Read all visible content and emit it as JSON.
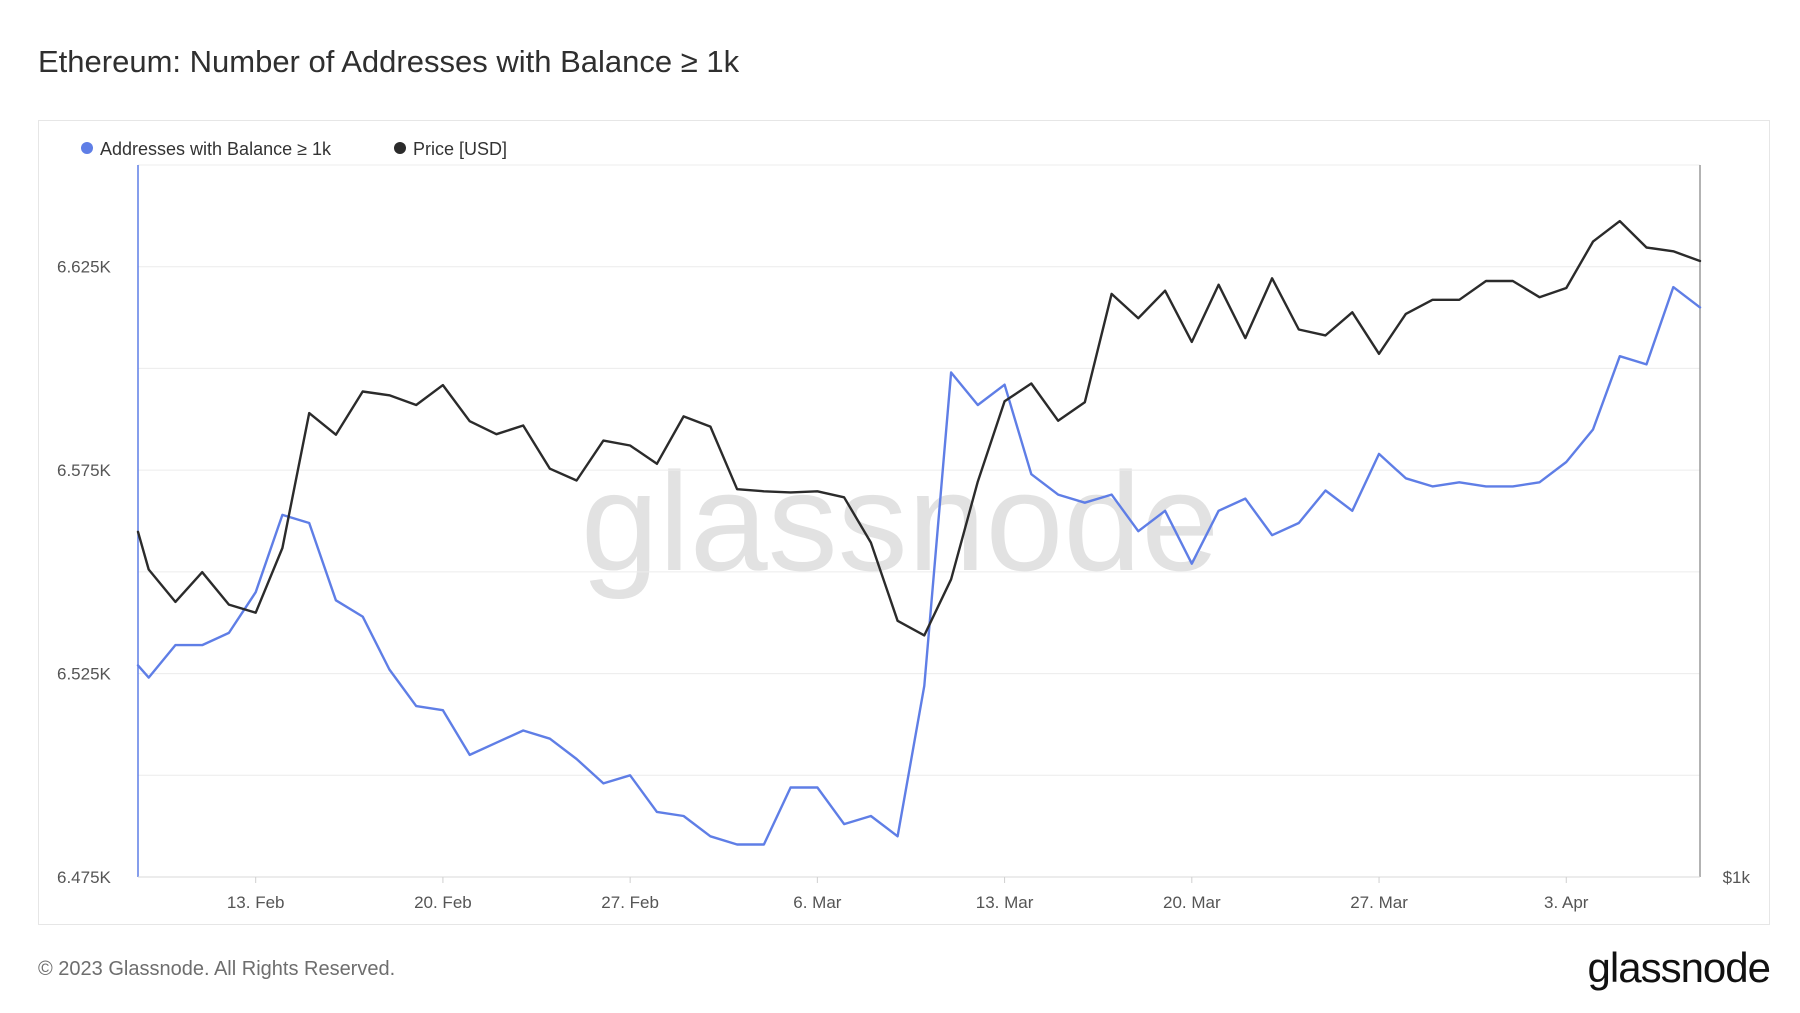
{
  "title": "Ethereum: Number of Addresses with Balance ≥ 1k",
  "footer": "© 2023 Glassnode. All Rights Reserved.",
  "brand": "glassnode",
  "watermark": "glassnode",
  "colors": {
    "addresses": "#5f7ee6",
    "price": "#2b2b2b",
    "grid": "#ececec"
  },
  "chart_data": {
    "type": "line",
    "title": "Ethereum: Number of Addresses with Balance ≥ 1k",
    "x_tick_labels": [
      "13. Feb",
      "20. Feb",
      "27. Feb",
      "6. Mar",
      "13. Mar",
      "20. Mar",
      "27. Mar",
      "3. Apr"
    ],
    "x_tick_days": [
      4,
      11,
      18,
      25,
      32,
      39,
      46,
      53
    ],
    "x_range_days": [
      -0.4,
      58.0
    ],
    "y_left": {
      "ticks": [
        "6.475K",
        "6.525K",
        "6.575K",
        "6.625K"
      ],
      "tick_values": [
        6475,
        6525,
        6575,
        6625
      ],
      "ylim": [
        6475,
        6650
      ]
    },
    "y_right": {
      "ticks": [
        "$1k"
      ]
    },
    "legend": [
      {
        "name": "Addresses with Balance ≥ 1k",
        "color": "#5f7ee6"
      },
      {
        "name": "Price [USD]",
        "color": "#2b2b2b"
      }
    ],
    "series": [
      {
        "name": "Addresses with Balance ≥ 1k",
        "axis": "left",
        "x_days": [
          -0.4,
          0,
          1,
          2,
          3,
          4,
          5,
          6,
          7,
          8,
          9,
          10,
          11,
          12,
          13,
          14,
          15,
          16,
          17,
          18,
          19,
          20,
          21,
          22,
          23,
          24,
          25,
          26,
          27,
          28,
          29,
          30,
          31,
          32,
          33,
          34,
          35,
          36,
          37,
          38,
          39,
          40,
          41,
          42,
          43,
          44,
          45,
          46,
          47,
          48,
          49,
          50,
          51,
          52,
          53,
          54,
          55,
          56,
          57,
          58
        ],
        "values": [
          6527,
          6524,
          6532,
          6532,
          6535,
          6545,
          6564,
          6562,
          6543,
          6539,
          6526,
          6517,
          6516,
          6505,
          6508,
          6511,
          6509,
          6504,
          6498,
          6500,
          6491,
          6490,
          6485,
          6483,
          6483,
          6497,
          6497,
          6488,
          6490,
          6485,
          6522,
          6599,
          6591,
          6596,
          6574,
          6569,
          6567,
          6569,
          6560,
          6565,
          6552,
          6565,
          6568,
          6559,
          6562,
          6570,
          6565,
          6579,
          6573,
          6571,
          6572,
          6571,
          6571,
          6572,
          6577,
          6585,
          6603,
          6601,
          6620,
          6615
        ]
      },
      {
        "name": "Price [USD]",
        "axis": "right",
        "x_days": [
          -0.4,
          0,
          1,
          2,
          3,
          4,
          5,
          6,
          7,
          8,
          9,
          10,
          11,
          12,
          13,
          14,
          15,
          16,
          17,
          18,
          19,
          20,
          21,
          22,
          23,
          24,
          25,
          26,
          27,
          28,
          29,
          30,
          31,
          32,
          33,
          34,
          35,
          36,
          37,
          38,
          39,
          40,
          41,
          42,
          43,
          44,
          45,
          46,
          47,
          48,
          49,
          50,
          51,
          52,
          53,
          54,
          55,
          56,
          57,
          58
        ],
        "values": [
          1640,
          1570,
          1510,
          1565,
          1505,
          1490,
          1610,
          1860,
          1820,
          1900,
          1893,
          1875,
          1912,
          1845,
          1821,
          1837,
          1757,
          1735,
          1809,
          1800,
          1766,
          1854,
          1835,
          1719,
          1715,
          1713,
          1715,
          1704,
          1620,
          1475,
          1448,
          1552,
          1733,
          1882,
          1915,
          1846,
          1880,
          2081,
          2036,
          2087,
          1992,
          2098,
          1999,
          2110,
          2015,
          2004,
          2047,
          1970,
          2044,
          2070,
          2070,
          2105,
          2105,
          2075,
          2092,
          2178,
          2216,
          2167,
          2160,
          2142
        ]
      }
    ]
  }
}
